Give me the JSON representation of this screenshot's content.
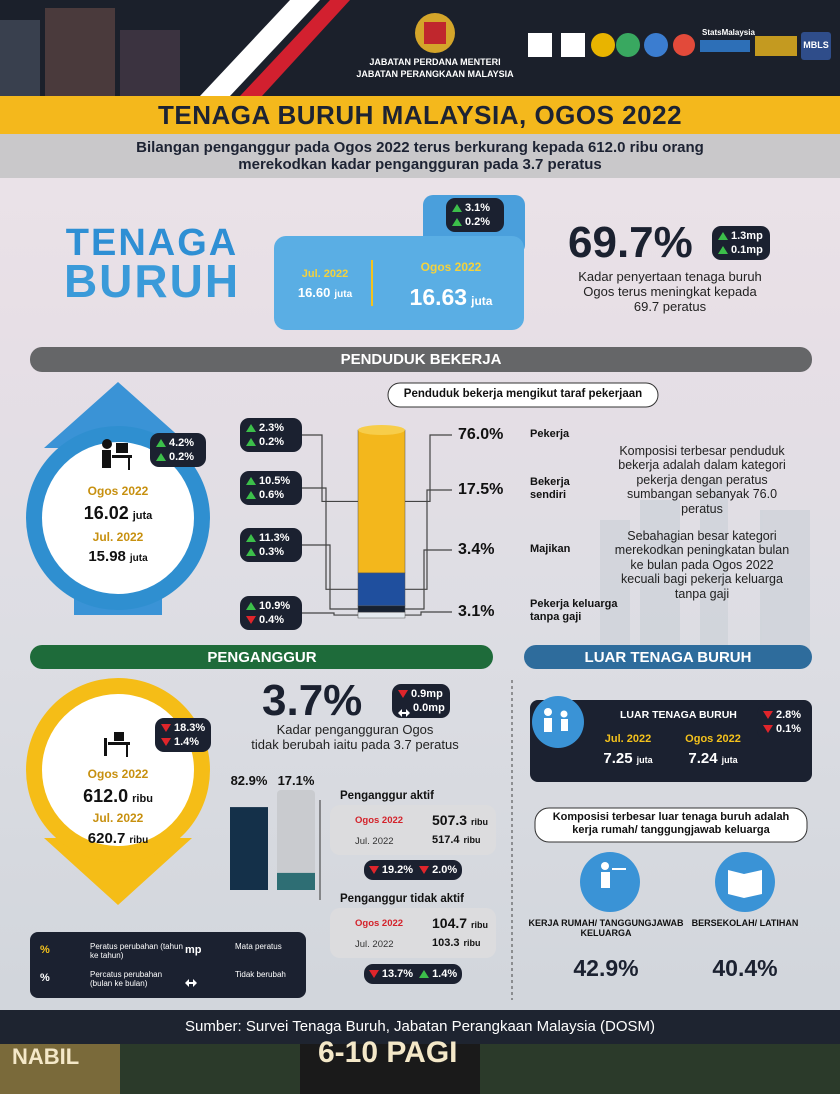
{
  "header": {
    "agency": [
      "JABATAN PERDANA MENTERI",
      "JABATAN PERANGKAAN MALAYSIA"
    ],
    "stats_brand": "StatsMalaysia",
    "mbls": "MBLS"
  },
  "title": "TENAGA BURUH MALAYSIA, OGOS 2022",
  "subtitle": [
    "Bilangan penganggur pada Ogos 2022 terus berkurang kepada 612.0 ribu orang",
    "merekodkan kadar pengangguran pada 3.7 peratus"
  ],
  "labour_force": {
    "heading": [
      "TENAGA",
      "BURUH"
    ],
    "change": [
      {
        "dir": "up",
        "value": "3.1%"
      },
      {
        "dir": "up",
        "value": "0.2%"
      }
    ],
    "previous": {
      "label": "Jul. 2022",
      "value": "16.60",
      "unit": "juta"
    },
    "current": {
      "label": "Ogos 2022",
      "value": "16.63",
      "unit": "juta"
    }
  },
  "participation": {
    "rate": "69.7%",
    "change": [
      {
        "dir": "up",
        "value": "1.3mp"
      },
      {
        "dir": "up",
        "value": "0.1mp"
      }
    ],
    "note": [
      "Kadar penyertaan tenaga buruh",
      "Ogos terus meningkat kepada",
      "69.7 peratus"
    ]
  },
  "employed": {
    "heading": "PENDUDUK BEKERJA",
    "change": [
      {
        "dir": "up",
        "value": "4.2%"
      },
      {
        "dir": "up",
        "value": "0.2%"
      }
    ],
    "current": {
      "label": "Ogos 2022",
      "value": "16.02",
      "unit": "juta"
    },
    "previous": {
      "label": "Jul. 2022",
      "value": "15.98",
      "unit": "juta"
    },
    "by_status": {
      "title": "Penduduk bekerja mengikut taraf pekerjaan",
      "categories": [
        "Pekerja",
        "Bekerja sendiri",
        "Majikan",
        "Pekerja keluarga tanpa gaji"
      ],
      "values": [
        76.0,
        17.5,
        3.4,
        3.1
      ],
      "value_labels": [
        "76.0%",
        "17.5%",
        "3.4%",
        "3.1%"
      ],
      "colors": [
        "#f3b71c",
        "#1f4f9e",
        "#172131",
        "#e4e9ef"
      ],
      "change": [
        [
          {
            "dir": "up",
            "value": "2.3%"
          },
          {
            "dir": "up",
            "value": "0.2%"
          }
        ],
        [
          {
            "dir": "up",
            "value": "10.5%"
          },
          {
            "dir": "up",
            "value": "0.6%"
          }
        ],
        [
          {
            "dir": "up",
            "value": "11.3%"
          },
          {
            "dir": "up",
            "value": "0.3%"
          }
        ],
        [
          {
            "dir": "up",
            "value": "10.9%"
          },
          {
            "dir": "down",
            "value": "0.4%"
          }
        ]
      ]
    },
    "notes": [
      "Komposisi terbesar penduduk bekerja adalah dalam kategori pekerja dengan peratus sumbangan sebanyak 76.0 peratus",
      "Sebahagian besar kategori merekodkan peningkatan bulan ke bulan pada Ogos 2022 kecuali bagi pekerja keluarga tanpa gaji"
    ]
  },
  "unemployed": {
    "heading": "PENGANGGUR",
    "change": [
      {
        "dir": "down",
        "value": "18.3%"
      },
      {
        "dir": "down",
        "value": "1.4%"
      }
    ],
    "current": {
      "label": "Ogos 2022",
      "value": "612.0",
      "unit": "ribu"
    },
    "previous": {
      "label": "Jul. 2022",
      "value": "620.7",
      "unit": "ribu"
    },
    "rate": "3.7%",
    "rate_change": [
      {
        "dir": "down",
        "value": "0.9mp"
      },
      {
        "dir": "same",
        "value": "0.0mp"
      }
    ],
    "note": [
      "Kadar pengangguran Ogos",
      "tidak berubah iaitu pada 3.7 peratus"
    ],
    "by_type": {
      "values": [
        82.9,
        17.1
      ],
      "value_labels": [
        "82.9%",
        "17.1%"
      ],
      "colors": [
        "#143049",
        "#2e6e74"
      ]
    },
    "active": {
      "title": "Penganggur aktif",
      "current": {
        "label": "Ogos 2022",
        "value": "507.3",
        "unit": "ribu"
      },
      "previous": {
        "label": "Jul. 2022",
        "value": "517.4",
        "unit": "ribu"
      },
      "change": [
        {
          "dir": "down",
          "value": "19.2%"
        },
        {
          "dir": "down",
          "value": "2.0%"
        }
      ]
    },
    "inactive": {
      "title": "Penganggur tidak aktif",
      "current": {
        "label": "Ogos 2022",
        "value": "104.7",
        "unit": "ribu"
      },
      "previous": {
        "label": "Jul. 2022",
        "value": "103.3",
        "unit": "ribu"
      },
      "change": [
        {
          "dir": "down",
          "value": "13.7%"
        },
        {
          "dir": "up",
          "value": "1.4%"
        }
      ]
    }
  },
  "legend": [
    {
      "symbol": "%",
      "text": "Peratus perubahan (tahun ke tahun)"
    },
    {
      "symbol": "mp",
      "text": "Mata peratus"
    },
    {
      "symbol": "%",
      "text": "Percatus perubahan (bulan ke bulan)"
    },
    {
      "text": "Tidak berubah"
    }
  ],
  "outside": {
    "heading": "LUAR TENAGA BURUH",
    "box_title": "LUAR TENAGA BURUH",
    "change": [
      {
        "dir": "down",
        "value": "2.8%"
      },
      {
        "dir": "down",
        "value": "0.1%"
      }
    ],
    "previous": {
      "label": "Jul. 2022",
      "value": "7.25",
      "unit": "juta"
    },
    "current": {
      "label": "Ogos 2022",
      "value": "7.24",
      "unit": "juta"
    },
    "composition_title": "Komposisi terbesar luar tenaga buruh adalah kerja rumah/ tanggungjawab keluarga",
    "items": [
      {
        "label": "KERJA RUMAH/ TANGGUNGJAWAB KELUARGA",
        "share": "42.9%"
      },
      {
        "label": "BERSEKOLAH/ LATIHAN",
        "share": "40.4%"
      }
    ]
  },
  "source": "Sumber: Survei Tenaga Buruh, Jabatan Perangkaan Malaysia (DOSM)",
  "banner": [
    "NABIL",
    "6-10 PAGI"
  ]
}
